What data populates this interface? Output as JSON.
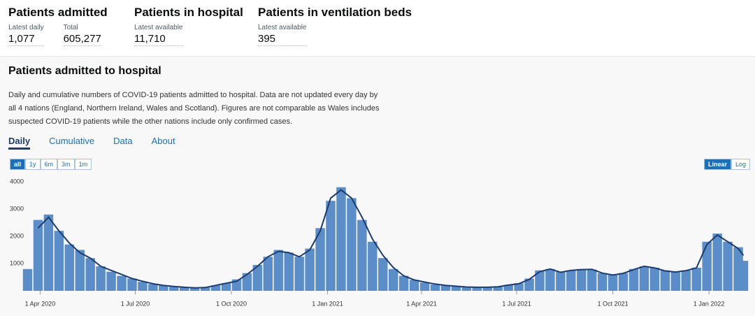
{
  "header": {
    "metrics": [
      {
        "title": "Patients admitted",
        "items": [
          {
            "label": "Latest daily",
            "value": "1,077"
          },
          {
            "label": "Total",
            "value": "605,277"
          }
        ]
      },
      {
        "title": "Patients in hospital",
        "items": [
          {
            "label": "Latest available",
            "value": "11,710"
          }
        ]
      },
      {
        "title": "Patients in ventilation beds",
        "items": [
          {
            "label": "Latest available",
            "value": "395"
          }
        ]
      }
    ]
  },
  "section": {
    "title": "Patients admitted to hospital",
    "description": "Daily and cumulative numbers of COVID-19 patients admitted to hospital. Data are not updated every day by all 4 nations (England, Northern Ireland, Wales and Scotland). Figures are not comparable as Wales includes suspected COVID-19 patients while the other nations include only confirmed cases.",
    "tabs": [
      "Daily",
      "Cumulative",
      "Data",
      "About"
    ],
    "range_buttons": [
      "all",
      "1y",
      "6m",
      "3m",
      "1m"
    ],
    "scale_buttons": [
      "Linear",
      "Log"
    ]
  },
  "chart_data": {
    "type": "bar",
    "color": "#5b8ec9",
    "average_color": "#1d3b6e",
    "x": [
      "2020-03-20",
      "2020-03-30",
      "2020-04-09",
      "2020-04-19",
      "2020-04-29",
      "2020-05-09",
      "2020-05-19",
      "2020-05-29",
      "2020-06-08",
      "2020-06-18",
      "2020-06-28",
      "2020-07-08",
      "2020-07-18",
      "2020-07-28",
      "2020-08-07",
      "2020-08-17",
      "2020-08-27",
      "2020-09-06",
      "2020-09-16",
      "2020-09-26",
      "2020-10-06",
      "2020-10-16",
      "2020-10-26",
      "2020-11-05",
      "2020-11-15",
      "2020-11-25",
      "2020-12-05",
      "2020-12-15",
      "2020-12-25",
      "2021-01-04",
      "2021-01-14",
      "2021-01-24",
      "2021-02-03",
      "2021-02-13",
      "2021-02-23",
      "2021-03-05",
      "2021-03-15",
      "2021-03-25",
      "2021-04-04",
      "2021-04-14",
      "2021-04-24",
      "2021-05-04",
      "2021-05-14",
      "2021-05-24",
      "2021-06-03",
      "2021-06-13",
      "2021-06-23",
      "2021-07-03",
      "2021-07-13",
      "2021-07-23",
      "2021-08-02",
      "2021-08-12",
      "2021-08-22",
      "2021-09-01",
      "2021-09-11",
      "2021-09-21",
      "2021-10-01",
      "2021-10-11",
      "2021-10-21",
      "2021-10-31",
      "2021-11-10",
      "2021-11-20",
      "2021-11-30",
      "2021-12-10",
      "2021-12-20",
      "2021-12-30",
      "2022-01-09",
      "2022-01-19",
      "2022-01-29",
      "2022-02-03"
    ],
    "values": [
      800,
      2600,
      2800,
      2200,
      1700,
      1500,
      1200,
      900,
      700,
      550,
      450,
      330,
      250,
      200,
      150,
      130,
      110,
      130,
      200,
      280,
      420,
      650,
      950,
      1250,
      1500,
      1400,
      1250,
      1550,
      2300,
      3300,
      3800,
      3400,
      2600,
      1800,
      1200,
      800,
      550,
      400,
      300,
      230,
      200,
      160,
      140,
      130,
      130,
      160,
      220,
      280,
      450,
      750,
      800,
      700,
      750,
      800,
      780,
      650,
      600,
      650,
      800,
      900,
      850,
      750,
      680,
      750,
      850,
      1800,
      2100,
      1800,
      1600,
      1100
    ],
    "average": [
      null,
      2300,
      2700,
      2200,
      1750,
      1400,
      1200,
      900,
      750,
      600,
      450,
      350,
      260,
      200,
      160,
      130,
      110,
      120,
      200,
      280,
      350,
      600,
      900,
      1250,
      1450,
      1400,
      1250,
      1500,
      2200,
      3400,
      3700,
      3400,
      2700,
      1900,
      1300,
      850,
      550,
      400,
      320,
      250,
      200,
      170,
      140,
      130,
      130,
      150,
      210,
      260,
      420,
      700,
      800,
      680,
      750,
      780,
      790,
      650,
      580,
      640,
      780,
      900,
      840,
      730,
      690,
      740,
      840,
      1700,
      2050,
      1800,
      1550,
      1300
    ],
    "xlim": [
      "2020-03-19",
      "2022-02-06"
    ],
    "xticks": [
      {
        "value": "2020-04-01",
        "label": "1 Apr 2020"
      },
      {
        "value": "2020-07-01",
        "label": "1 Jul 2020"
      },
      {
        "value": "2020-10-01",
        "label": "1 Oct 2020"
      },
      {
        "value": "2021-01-01",
        "label": "1 Jan 2021"
      },
      {
        "value": "2021-04-01",
        "label": "1 Apr 2021"
      },
      {
        "value": "2021-07-01",
        "label": "1 Jul 2021"
      },
      {
        "value": "2021-10-01",
        "label": "1 Oct 2021"
      },
      {
        "value": "2022-01-01",
        "label": "1 Jan 2022"
      }
    ],
    "ylim": [
      0,
      4000
    ],
    "yticks": [
      1000,
      2000,
      3000,
      4000
    ],
    "grid": false
  }
}
